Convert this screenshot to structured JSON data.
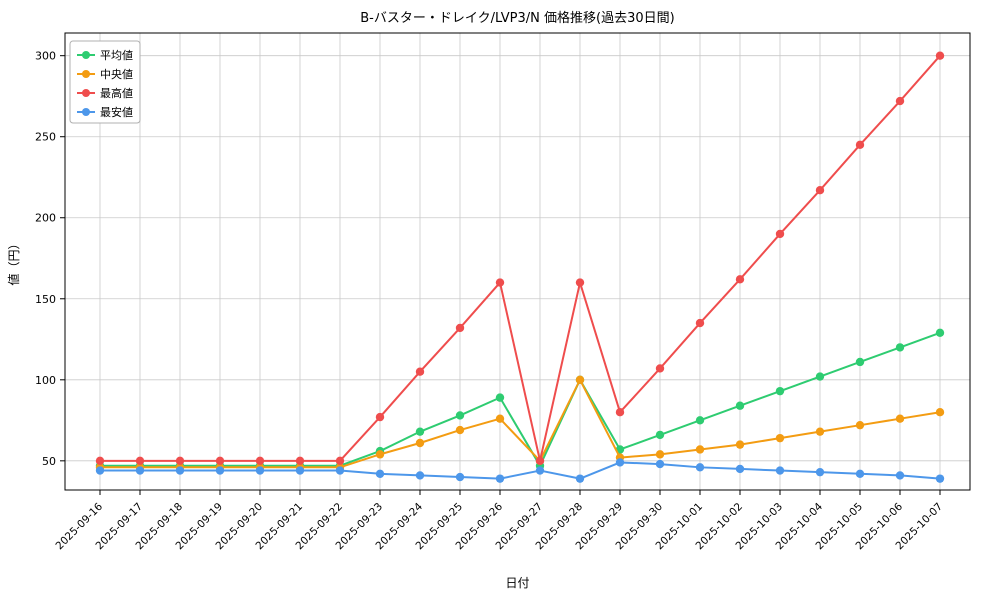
{
  "chart_data": {
    "type": "line",
    "title": "B-バスター・ドレイク/LVP3/N 価格推移(過去30日間)",
    "xlabel": "日付",
    "ylabel": "値（円）",
    "grid": true,
    "legend_position": "upper-left",
    "ylim": [
      32,
      314
    ],
    "yticks": [
      50,
      100,
      150,
      200,
      250,
      300
    ],
    "x": [
      "2025-09-16",
      "2025-09-17",
      "2025-09-18",
      "2025-09-19",
      "2025-09-20",
      "2025-09-21",
      "2025-09-22",
      "2025-09-23",
      "2025-09-24",
      "2025-09-25",
      "2025-09-26",
      "2025-09-27",
      "2025-09-28",
      "2025-09-29",
      "2025-09-30",
      "2025-10-01",
      "2025-10-02",
      "2025-10-03",
      "2025-10-04",
      "2025-10-05",
      "2025-10-06",
      "2025-10-07"
    ],
    "series": [
      {
        "key": "average",
        "name": "平均値",
        "color": "#2ecc71",
        "values": [
          47,
          47,
          47,
          47,
          47,
          47,
          47,
          56,
          68,
          78,
          89,
          47,
          100,
          57,
          66,
          75,
          84,
          93,
          102,
          111,
          120,
          129
        ]
      },
      {
        "key": "median",
        "name": "中央値",
        "color": "#f39c12",
        "values": [
          46,
          46,
          46,
          46,
          46,
          46,
          46,
          54,
          61,
          69,
          76,
          50,
          100,
          52,
          54,
          57,
          60,
          64,
          68,
          72,
          76,
          80
        ]
      },
      {
        "key": "highest",
        "name": "最高値",
        "color": "#ef4d4d",
        "values": [
          50,
          50,
          50,
          50,
          50,
          50,
          50,
          77,
          105,
          132,
          160,
          50,
          160,
          80,
          107,
          135,
          162,
          190,
          217,
          245,
          272,
          300
        ]
      },
      {
        "key": "lowest",
        "name": "最安値",
        "color": "#4d97ea",
        "values": [
          44,
          44,
          44,
          44,
          44,
          44,
          44,
          42,
          41,
          40,
          39,
          44,
          39,
          49,
          48,
          46,
          45,
          44,
          43,
          42,
          41,
          39
        ]
      }
    ]
  }
}
